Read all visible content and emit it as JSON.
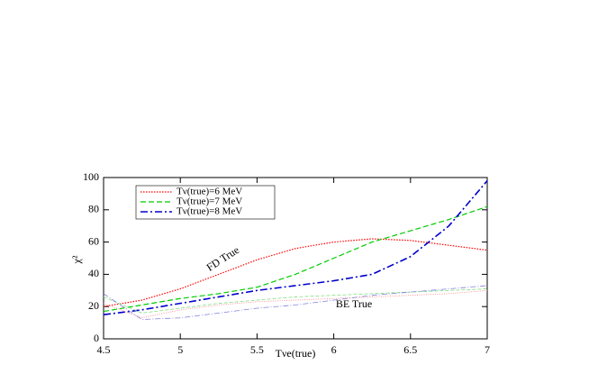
{
  "chart_data": {
    "type": "line",
    "x_label": "Tνe(true)",
    "y_label": "χ²",
    "annotations": [
      "FD True",
      "BE True"
    ],
    "x": [
      4.5,
      4.75,
      5,
      5.25,
      5.5,
      5.75,
      6,
      6.25,
      6.5,
      6.75,
      7
    ],
    "series": [
      {
        "name": "Tν(true)=6 MeV",
        "color": "#ff0000",
        "dash": "1.5,1.5",
        "width": 1.2,
        "values": [
          20,
          24,
          31,
          40,
          49,
          56,
          60,
          62,
          61,
          58,
          55
        ]
      },
      {
        "name": "Tν(true)=7 MeV",
        "color": "#00cc00",
        "dash": "6,3",
        "width": 1.2,
        "values": [
          17,
          21,
          25,
          28,
          32,
          40,
          50,
          60,
          67,
          74,
          82
        ]
      },
      {
        "name": "Tν(true)=8 MeV",
        "color": "#0000cc",
        "dash": "8,3,2,3",
        "width": 1.6,
        "values": [
          15,
          18,
          22,
          26,
          30,
          33,
          36,
          40,
          51,
          70,
          98
        ]
      },
      {
        "color": "#ff8080",
        "dash": "1,1.5",
        "width": 0.8,
        "values": [
          22,
          13,
          18,
          21,
          23,
          24,
          25,
          26,
          27,
          28,
          30
        ]
      },
      {
        "color": "#80dd80",
        "dash": "4,2",
        "width": 0.8,
        "values": [
          26,
          16,
          19,
          22,
          24,
          26,
          27,
          28,
          29,
          30,
          31
        ]
      },
      {
        "color": "#8080dd",
        "dash": "6,2,1,2",
        "width": 0.8,
        "values": [
          28,
          12,
          13,
          16,
          19,
          21,
          24,
          27,
          29,
          31,
          33
        ]
      }
    ],
    "xlim": [
      4.5,
      7
    ],
    "xticks": [
      4.5,
      5,
      5.5,
      6,
      6.5,
      7
    ],
    "ylim": [
      0,
      100
    ],
    "yticks": [
      0,
      20,
      40,
      60,
      80,
      100
    ],
    "grid": false,
    "legend": "upper left"
  }
}
